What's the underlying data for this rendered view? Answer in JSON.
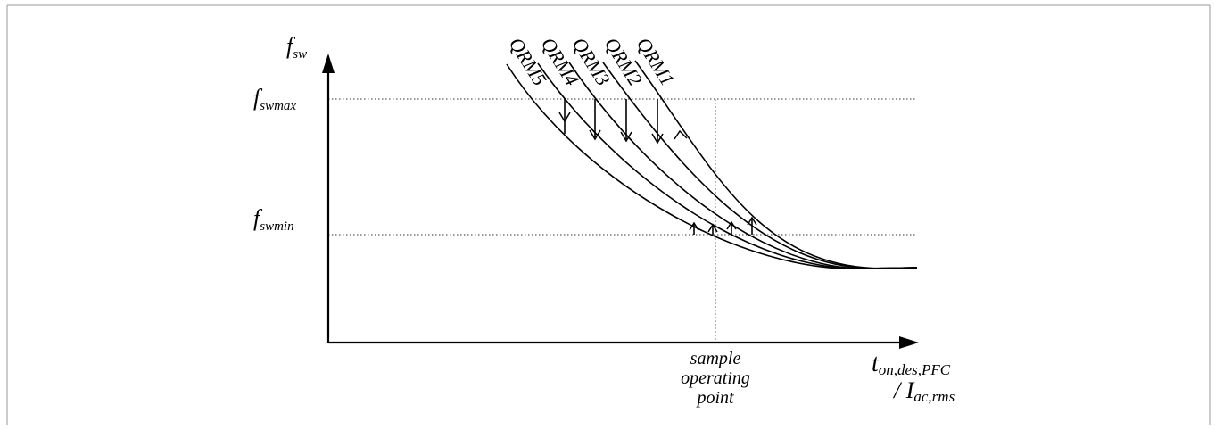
{
  "axes": {
    "y_symbol": "f",
    "y_subscript": "sw",
    "x_symbol": "t",
    "x_subscript": "on,des,PFC",
    "x_divider": "/ I",
    "x_divider_subscript": "ac,rms"
  },
  "levels": {
    "max_symbol": "f",
    "max_subscript": "swmax",
    "min_symbol": "f",
    "min_subscript": "swmin"
  },
  "curves": [
    {
      "label": "QRM1"
    },
    {
      "label": "QRM2"
    },
    {
      "label": "QRM3"
    },
    {
      "label": "QRM4"
    },
    {
      "label": "QRM5"
    }
  ],
  "operating_point": {
    "line1": "sample",
    "line2": "operating",
    "line3": "point",
    "line_color": "#d04040"
  }
}
